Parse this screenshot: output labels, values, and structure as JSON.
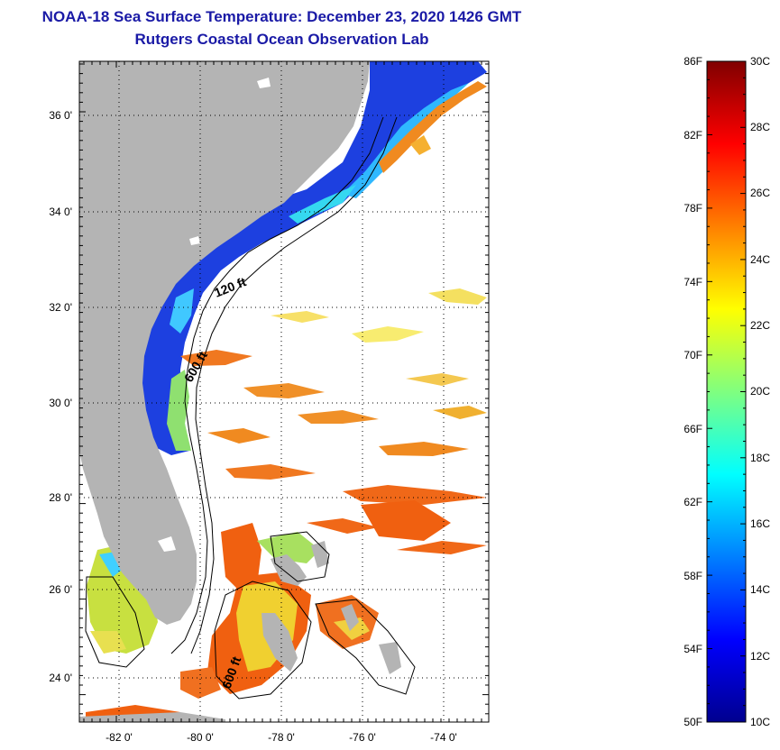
{
  "title_line1": "NOAA-18 Sea Surface Temperature:  December 23, 2020 1426 GMT",
  "title_line2": "Rutgers Coastal Ocean Observation Lab",
  "map": {
    "lat_labels": [
      "36 0'",
      "34 0'",
      "32 0'",
      "30 0'",
      "28 0'",
      "26 0'",
      "24 0'"
    ],
    "lon_labels": [
      "-82 0'",
      "-80 0'",
      "-78 0'",
      "-76 0'",
      "-74 0'"
    ],
    "contour_labels": [
      "120 ft",
      "600 ft",
      "600 ft"
    ],
    "colors": {
      "land": "#b3b3b3",
      "cloud": "#ffffff",
      "cold": "#1030d0",
      "warm": "#e85010"
    }
  },
  "colorbar": {
    "fahrenheit_labels": [
      "86F",
      "82F",
      "78F",
      "74F",
      "70F",
      "66F",
      "62F",
      "58F",
      "54F",
      "50F"
    ],
    "celsius_labels": [
      "30C",
      "28C",
      "26C",
      "24C",
      "22C",
      "20C",
      "18C",
      "16C",
      "14C",
      "12C",
      "10C"
    ]
  }
}
